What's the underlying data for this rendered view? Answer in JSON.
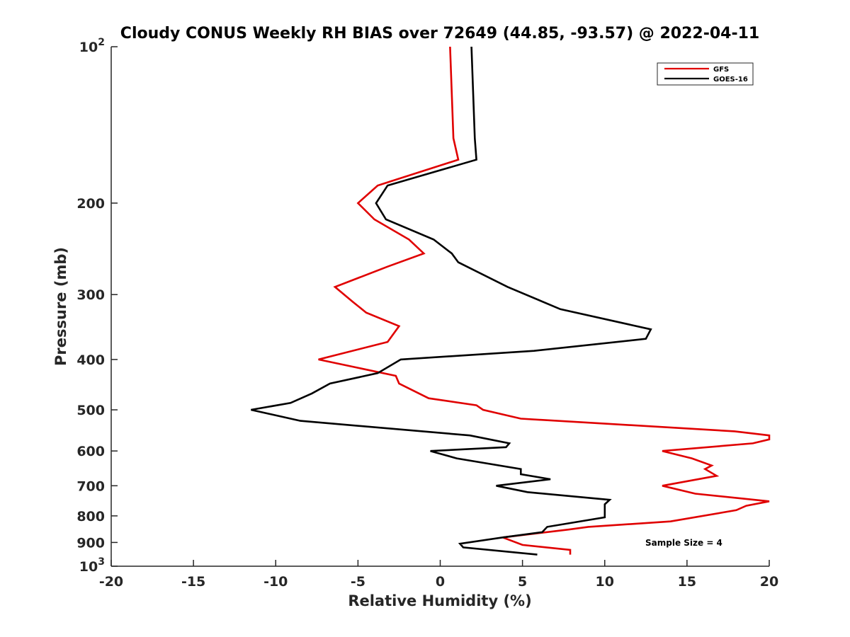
{
  "chart_data": {
    "type": "line",
    "title": "Cloudy CONUS Weekly RH BIAS over 72649 (44.85, -93.57) @ 2022-04-11",
    "xlabel": "Relative Humidity (%)",
    "ylabel": "Pressure (mb)",
    "xlim": [
      -20,
      20
    ],
    "ylim": [
      100,
      1000
    ],
    "y_scale": "log",
    "y_reversed": true,
    "grid": false,
    "legend_position": "top-right",
    "x_ticks": [
      "-20",
      "-15",
      "-10",
      "-5",
      "0",
      "5",
      "10",
      "15",
      "20"
    ],
    "x_tick_values": [
      -20,
      -15,
      -10,
      -5,
      0,
      5,
      10,
      15,
      20
    ],
    "y_ticks": [
      {
        "value": 100,
        "base": "10",
        "exp": "2"
      },
      {
        "value": 200,
        "label": "200"
      },
      {
        "value": 300,
        "label": "300"
      },
      {
        "value": 400,
        "label": "400"
      },
      {
        "value": 500,
        "label": "500"
      },
      {
        "value": 600,
        "label": "600"
      },
      {
        "value": 700,
        "label": "700"
      },
      {
        "value": 800,
        "label": "800"
      },
      {
        "value": 900,
        "label": "900"
      },
      {
        "value": 1000,
        "base": "10",
        "exp": "3"
      }
    ],
    "annotation": "Sample Size = 4",
    "series": [
      {
        "name": "GFS",
        "color": "#e00000",
        "points": [
          [
            0.6,
            100
          ],
          [
            0.8,
            150
          ],
          [
            1.1,
            165
          ],
          [
            -3.8,
            185
          ],
          [
            -5.0,
            200
          ],
          [
            -4.0,
            215
          ],
          [
            -1.9,
            235
          ],
          [
            -1.0,
            250
          ],
          [
            -3.2,
            265
          ],
          [
            -6.4,
            290
          ],
          [
            -5.3,
            310
          ],
          [
            -4.5,
            325
          ],
          [
            -2.5,
            345
          ],
          [
            -3.2,
            370
          ],
          [
            -7.4,
            400
          ],
          [
            -2.7,
            430
          ],
          [
            -2.5,
            445
          ],
          [
            -0.7,
            475
          ],
          [
            2.2,
            490
          ],
          [
            2.6,
            500
          ],
          [
            4.9,
            520
          ],
          [
            17.9,
            550
          ],
          [
            20.0,
            560
          ],
          [
            20.0,
            570
          ],
          [
            19.0,
            580
          ],
          [
            13.5,
            600
          ],
          [
            15.3,
            620
          ],
          [
            16.5,
            640
          ],
          [
            16.1,
            650
          ],
          [
            16.8,
            670
          ],
          [
            13.5,
            700
          ],
          [
            15.5,
            725
          ],
          [
            20.0,
            750
          ],
          [
            18.6,
            765
          ],
          [
            18.0,
            780
          ],
          [
            14.0,
            820
          ],
          [
            9.0,
            840
          ],
          [
            7.8,
            850
          ],
          [
            3.8,
            880
          ],
          [
            5.0,
            910
          ],
          [
            7.9,
            930
          ],
          [
            7.9,
            950
          ]
        ]
      },
      {
        "name": "GOES-16",
        "color": "#000000",
        "points": [
          [
            1.9,
            100
          ],
          [
            2.1,
            150
          ],
          [
            2.2,
            165
          ],
          [
            -3.2,
            185
          ],
          [
            -3.9,
            200
          ],
          [
            -3.3,
            215
          ],
          [
            -0.4,
            235
          ],
          [
            0.7,
            250
          ],
          [
            1.1,
            260
          ],
          [
            4.1,
            290
          ],
          [
            7.3,
            320
          ],
          [
            12.8,
            350
          ],
          [
            12.5,
            365
          ],
          [
            5.7,
            385
          ],
          [
            -2.4,
            400
          ],
          [
            -3.8,
            425
          ],
          [
            -6.7,
            445
          ],
          [
            -7.8,
            465
          ],
          [
            -9.1,
            485
          ],
          [
            -11.5,
            500
          ],
          [
            -8.5,
            525
          ],
          [
            1.8,
            560
          ],
          [
            4.2,
            580
          ],
          [
            4.0,
            590
          ],
          [
            -0.6,
            600
          ],
          [
            1.0,
            620
          ],
          [
            4.9,
            650
          ],
          [
            4.9,
            665
          ],
          [
            6.7,
            680
          ],
          [
            3.4,
            700
          ],
          [
            5.3,
            720
          ],
          [
            10.3,
            745
          ],
          [
            10.0,
            760
          ],
          [
            10.0,
            790
          ],
          [
            10.0,
            805
          ],
          [
            6.5,
            840
          ],
          [
            6.2,
            860
          ],
          [
            3.8,
            880
          ],
          [
            1.2,
            905
          ],
          [
            1.4,
            920
          ],
          [
            5.9,
            950
          ]
        ]
      }
    ]
  }
}
